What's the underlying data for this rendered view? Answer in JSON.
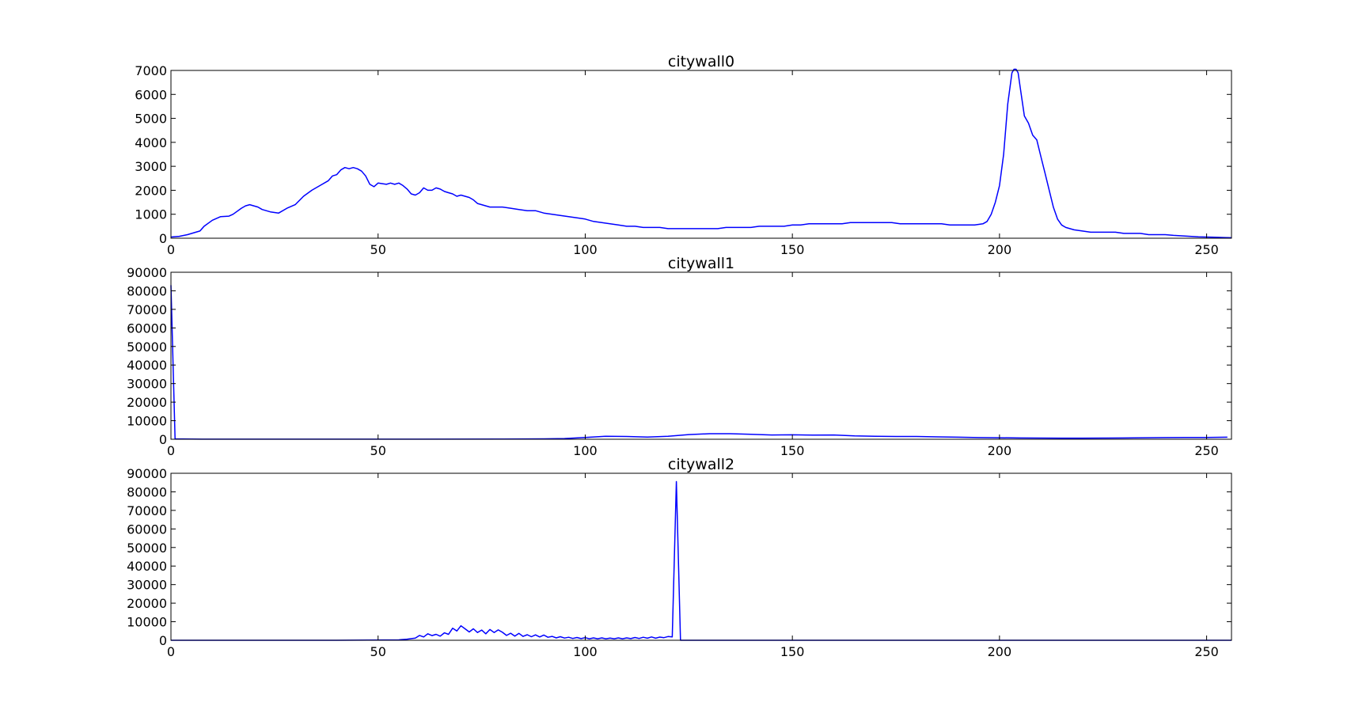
{
  "chart_data": [
    {
      "type": "line",
      "title": "citywall0",
      "xlim": [
        0,
        256
      ],
      "ylim": [
        0,
        7000
      ],
      "xticks": [
        0,
        50,
        100,
        150,
        200,
        250
      ],
      "yticks": [
        0,
        1000,
        2000,
        3000,
        4000,
        5000,
        6000,
        7000
      ],
      "color": "#0000ff",
      "series": [
        {
          "points": [
            [
              0,
              50
            ],
            [
              2,
              80
            ],
            [
              4,
              150
            ],
            [
              6,
              250
            ],
            [
              7,
              300
            ],
            [
              8,
              500
            ],
            [
              10,
              750
            ],
            [
              12,
              900
            ],
            [
              14,
              920
            ],
            [
              15,
              1000
            ],
            [
              17,
              1250
            ],
            [
              18,
              1350
            ],
            [
              19,
              1400
            ],
            [
              20,
              1350
            ],
            [
              21,
              1300
            ],
            [
              22,
              1200
            ],
            [
              24,
              1100
            ],
            [
              26,
              1050
            ],
            [
              28,
              1250
            ],
            [
              30,
              1400
            ],
            [
              32,
              1750
            ],
            [
              34,
              2000
            ],
            [
              36,
              2200
            ],
            [
              38,
              2400
            ],
            [
              39,
              2600
            ],
            [
              40,
              2650
            ],
            [
              41,
              2850
            ],
            [
              42,
              2950
            ],
            [
              43,
              2900
            ],
            [
              44,
              2950
            ],
            [
              45,
              2900
            ],
            [
              46,
              2800
            ],
            [
              47,
              2600
            ],
            [
              48,
              2250
            ],
            [
              49,
              2150
            ],
            [
              50,
              2300
            ],
            [
              52,
              2250
            ],
            [
              53,
              2300
            ],
            [
              54,
              2250
            ],
            [
              55,
              2300
            ],
            [
              56,
              2200
            ],
            [
              57,
              2050
            ],
            [
              58,
              1850
            ],
            [
              59,
              1800
            ],
            [
              60,
              1900
            ],
            [
              61,
              2100
            ],
            [
              62,
              2000
            ],
            [
              63,
              2000
            ],
            [
              64,
              2100
            ],
            [
              65,
              2050
            ],
            [
              66,
              1950
            ],
            [
              67,
              1900
            ],
            [
              68,
              1850
            ],
            [
              69,
              1750
            ],
            [
              70,
              1800
            ],
            [
              72,
              1700
            ],
            [
              73,
              1600
            ],
            [
              74,
              1450
            ],
            [
              75,
              1400
            ],
            [
              76,
              1350
            ],
            [
              77,
              1300
            ],
            [
              78,
              1300
            ],
            [
              80,
              1300
            ],
            [
              82,
              1250
            ],
            [
              84,
              1200
            ],
            [
              86,
              1150
            ],
            [
              88,
              1150
            ],
            [
              90,
              1050
            ],
            [
              92,
              1000
            ],
            [
              94,
              950
            ],
            [
              96,
              900
            ],
            [
              98,
              850
            ],
            [
              100,
              800
            ],
            [
              102,
              700
            ],
            [
              104,
              650
            ],
            [
              106,
              600
            ],
            [
              108,
              550
            ],
            [
              110,
              500
            ],
            [
              112,
              500
            ],
            [
              114,
              450
            ],
            [
              116,
              450
            ],
            [
              118,
              450
            ],
            [
              120,
              400
            ],
            [
              122,
              400
            ],
            [
              124,
              400
            ],
            [
              126,
              400
            ],
            [
              128,
              400
            ],
            [
              130,
              400
            ],
            [
              132,
              400
            ],
            [
              134,
              450
            ],
            [
              136,
              450
            ],
            [
              138,
              450
            ],
            [
              140,
              450
            ],
            [
              142,
              500
            ],
            [
              144,
              500
            ],
            [
              146,
              500
            ],
            [
              148,
              500
            ],
            [
              150,
              550
            ],
            [
              152,
              550
            ],
            [
              154,
              600
            ],
            [
              156,
              600
            ],
            [
              158,
              600
            ],
            [
              160,
              600
            ],
            [
              162,
              600
            ],
            [
              164,
              650
            ],
            [
              166,
              650
            ],
            [
              168,
              650
            ],
            [
              170,
              650
            ],
            [
              172,
              650
            ],
            [
              174,
              650
            ],
            [
              176,
              600
            ],
            [
              178,
              600
            ],
            [
              180,
              600
            ],
            [
              182,
              600
            ],
            [
              184,
              600
            ],
            [
              186,
              600
            ],
            [
              188,
              550
            ],
            [
              190,
              550
            ],
            [
              192,
              550
            ],
            [
              194,
              550
            ],
            [
              196,
              600
            ],
            [
              197,
              700
            ],
            [
              198,
              1000
            ],
            [
              199,
              1500
            ],
            [
              200,
              2200
            ],
            [
              201,
              3500
            ],
            [
              202,
              5600
            ],
            [
              203,
              6900
            ],
            [
              203.5,
              7050
            ],
            [
              204,
              7050
            ],
            [
              204.5,
              6900
            ],
            [
              205,
              6300
            ],
            [
              206,
              5100
            ],
            [
              207,
              4800
            ],
            [
              208,
              4300
            ],
            [
              209,
              4100
            ],
            [
              210,
              3400
            ],
            [
              211,
              2700
            ],
            [
              212,
              2000
            ],
            [
              213,
              1300
            ],
            [
              214,
              800
            ],
            [
              215,
              550
            ],
            [
              216,
              450
            ],
            [
              218,
              350
            ],
            [
              220,
              300
            ],
            [
              222,
              250
            ],
            [
              224,
              250
            ],
            [
              226,
              250
            ],
            [
              228,
              250
            ],
            [
              230,
              200
            ],
            [
              232,
              200
            ],
            [
              234,
              200
            ],
            [
              236,
              150
            ],
            [
              238,
              150
            ],
            [
              240,
              150
            ],
            [
              242,
              120
            ],
            [
              244,
              100
            ],
            [
              246,
              80
            ],
            [
              248,
              60
            ],
            [
              250,
              50
            ],
            [
              252,
              40
            ],
            [
              254,
              30
            ],
            [
              256,
              20
            ]
          ]
        }
      ]
    },
    {
      "type": "line",
      "title": "citywall1",
      "xlim": [
        0,
        256
      ],
      "ylim": [
        0,
        90000
      ],
      "xticks": [
        0,
        50,
        100,
        150,
        200,
        250
      ],
      "yticks": [
        0,
        10000,
        20000,
        30000,
        40000,
        50000,
        60000,
        70000,
        80000,
        90000
      ],
      "color": "#0000ff",
      "series": [
        {
          "points": [
            [
              0,
              83000
            ],
            [
              1,
              200
            ],
            [
              5,
              100
            ],
            [
              20,
              50
            ],
            [
              40,
              30
            ],
            [
              60,
              50
            ],
            [
              80,
              100
            ],
            [
              90,
              200
            ],
            [
              95,
              400
            ],
            [
              100,
              1000
            ],
            [
              105,
              1600
            ],
            [
              110,
              1500
            ],
            [
              115,
              1200
            ],
            [
              120,
              1600
            ],
            [
              125,
              2500
            ],
            [
              130,
              3000
            ],
            [
              135,
              3000
            ],
            [
              140,
              2700
            ],
            [
              145,
              2300
            ],
            [
              150,
              2400
            ],
            [
              155,
              2200
            ],
            [
              160,
              2300
            ],
            [
              165,
              1800
            ],
            [
              170,
              1600
            ],
            [
              175,
              1500
            ],
            [
              180,
              1500
            ],
            [
              185,
              1300
            ],
            [
              190,
              1100
            ],
            [
              195,
              900
            ],
            [
              200,
              800
            ],
            [
              205,
              700
            ],
            [
              210,
              650
            ],
            [
              215,
              600
            ],
            [
              220,
              600
            ],
            [
              225,
              650
            ],
            [
              230,
              700
            ],
            [
              235,
              800
            ],
            [
              240,
              900
            ],
            [
              245,
              1000
            ],
            [
              250,
              1000
            ],
            [
              255,
              1100
            ]
          ]
        }
      ]
    },
    {
      "type": "line",
      "title": "citywall2",
      "xlim": [
        0,
        256
      ],
      "ylim": [
        0,
        90000
      ],
      "xticks": [
        0,
        50,
        100,
        150,
        200,
        250
      ],
      "yticks": [
        0,
        10000,
        20000,
        30000,
        40000,
        50000,
        60000,
        70000,
        80000,
        90000
      ],
      "color": "#0000ff",
      "series": [
        {
          "points": [
            [
              0,
              0
            ],
            [
              40,
              0
            ],
            [
              55,
              200
            ],
            [
              57,
              600
            ],
            [
              59,
              1200
            ],
            [
              60,
              2600
            ],
            [
              61,
              1800
            ],
            [
              62,
              3500
            ],
            [
              63,
              2500
            ],
            [
              64,
              3200
            ],
            [
              65,
              2200
            ],
            [
              66,
              4000
            ],
            [
              67,
              3200
            ],
            [
              68,
              6500
            ],
            [
              69,
              5000
            ],
            [
              70,
              7800
            ],
            [
              71,
              6200
            ],
            [
              72,
              4500
            ],
            [
              73,
              6200
            ],
            [
              74,
              4200
            ],
            [
              75,
              5500
            ],
            [
              76,
              3500
            ],
            [
              77,
              5800
            ],
            [
              78,
              4200
            ],
            [
              79,
              5600
            ],
            [
              80,
              4300
            ],
            [
              81,
              2600
            ],
            [
              82,
              3800
            ],
            [
              83,
              2200
            ],
            [
              84,
              3700
            ],
            [
              85,
              2100
            ],
            [
              86,
              3000
            ],
            [
              87,
              1900
            ],
            [
              88,
              2900
            ],
            [
              89,
              1800
            ],
            [
              90,
              2800
            ],
            [
              91,
              1600
            ],
            [
              92,
              2100
            ],
            [
              93,
              1300
            ],
            [
              94,
              1900
            ],
            [
              95,
              1200
            ],
            [
              96,
              1600
            ],
            [
              97,
              1000
            ],
            [
              98,
              1500
            ],
            [
              99,
              900
            ],
            [
              100,
              1400
            ],
            [
              101,
              800
            ],
            [
              102,
              1300
            ],
            [
              103,
              800
            ],
            [
              104,
              1300
            ],
            [
              105,
              800
            ],
            [
              106,
              1200
            ],
            [
              107,
              800
            ],
            [
              108,
              1300
            ],
            [
              109,
              800
            ],
            [
              110,
              1300
            ],
            [
              111,
              900
            ],
            [
              112,
              1500
            ],
            [
              113,
              1000
            ],
            [
              114,
              1600
            ],
            [
              115,
              1100
            ],
            [
              116,
              1800
            ],
            [
              117,
              1100
            ],
            [
              118,
              1700
            ],
            [
              119,
              1400
            ],
            [
              120,
              2000
            ],
            [
              121,
              1800
            ],
            [
              122,
              85500
            ],
            [
              123,
              0
            ],
            [
              130,
              0
            ],
            [
              256,
              0
            ]
          ]
        }
      ]
    }
  ]
}
